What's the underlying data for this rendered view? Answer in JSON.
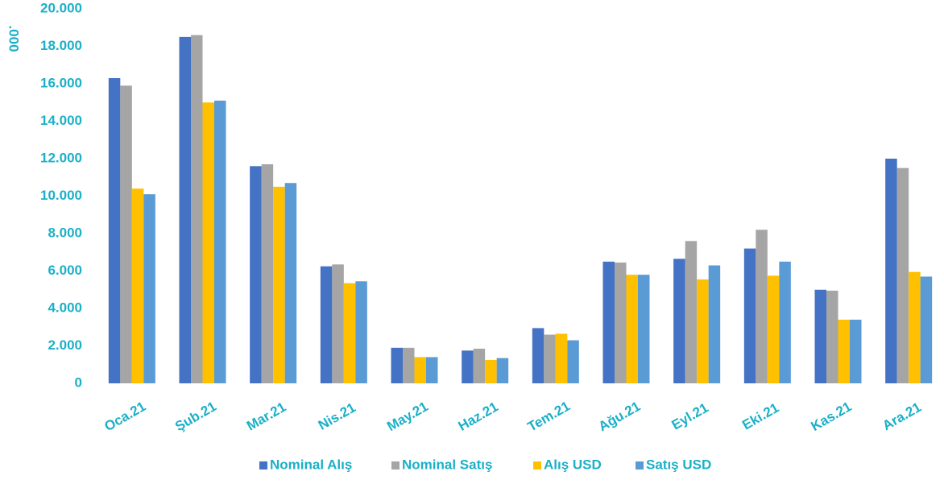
{
  "chart_data": {
    "type": "bar",
    "y_axis_label": ".000",
    "categories": [
      "Oca.21",
      "Şub.21",
      "Mar.21",
      "Nis.21",
      "May.21",
      "Haz.21",
      "Tem.21",
      "Ağu.21",
      "Eyl.21",
      "Eki.21",
      "Kas.21",
      "Ara.21"
    ],
    "series": [
      {
        "name": "Nominal Alış",
        "color": "#4472c4",
        "values": [
          16300,
          18500,
          11600,
          6250,
          1900,
          1750,
          2950,
          6500,
          6650,
          7200,
          5000,
          12000
        ]
      },
      {
        "name": "Nominal Satış",
        "color": "#a5a5a5",
        "values": [
          15900,
          18600,
          11700,
          6350,
          1900,
          1850,
          2600,
          6450,
          7600,
          8200,
          4950,
          11500
        ]
      },
      {
        "name": "Alış USD",
        "color": "#ffc000",
        "values": [
          10400,
          15000,
          10500,
          5350,
          1400,
          1250,
          2650,
          5800,
          5550,
          5750,
          3400,
          5950
        ]
      },
      {
        "name": "Satış USD",
        "color": "#5b9bd5",
        "values": [
          10100,
          15100,
          10700,
          5450,
          1400,
          1350,
          2300,
          5800,
          6300,
          6500,
          3400,
          5700
        ]
      }
    ],
    "ylim": [
      0,
      20000
    ],
    "yticks": [
      0,
      {
        "value": 2000,
        "label": "2.000"
      },
      {
        "value": 4000,
        "label": "4.000"
      },
      {
        "value": 6000,
        "label": "6.000"
      },
      {
        "value": 8000,
        "label": "8.000"
      },
      {
        "value": 10000,
        "label": "10.000"
      },
      {
        "value": 12000,
        "label": "12.000"
      },
      {
        "value": 14000,
        "label": "14.000"
      },
      {
        "value": 16000,
        "label": "16.000"
      },
      {
        "value": 18000,
        "label": "18.000"
      },
      {
        "value": 20000,
        "label": "20.000"
      }
    ],
    "legend": "bottom"
  }
}
